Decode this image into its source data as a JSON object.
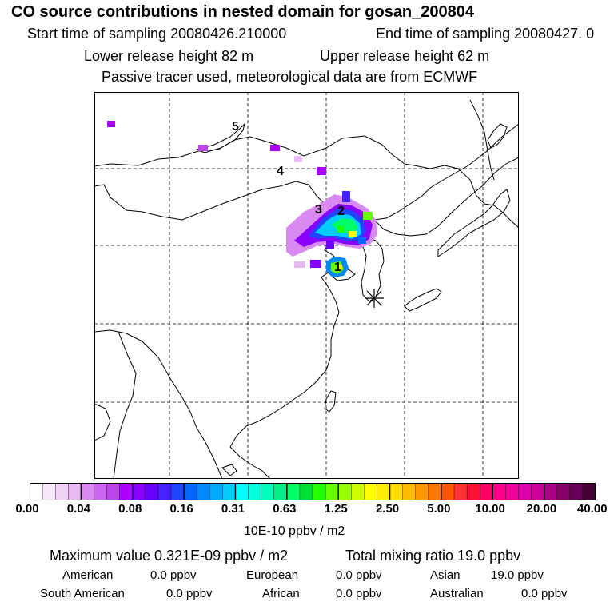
{
  "header": {
    "title": "CO  source contributions in nested domain for gosan_200804",
    "start_sampling": "Start time of sampling 20080426.210000",
    "end_sampling": "End time of sampling 20080427.     0",
    "lower_release": "Lower release height   82 m",
    "upper_release": "Upper release height   62 m",
    "tracer_note": "Passive tracer used, meteorological data are from ECMWF"
  },
  "map": {
    "labels": [
      "1",
      "2",
      "3",
      "4",
      "5"
    ],
    "receptor_icon": "asterisk-receptor-icon"
  },
  "colorbar": {
    "tick_labels": [
      "0.00",
      "0.04",
      "0.08",
      "0.16",
      "0.31",
      "0.63",
      "1.25",
      "2.50",
      "5.00",
      "10.00",
      "20.00",
      "40.00"
    ],
    "units": "10E-10 ppbv / m2",
    "colors": [
      "#ffffff",
      "#f7e9fb",
      "#f0d2f7",
      "#e8baf3",
      "#d98af0",
      "#cc66ee",
      "#bb44ee",
      "#aa00ff",
      "#8800ff",
      "#6600ff",
      "#4422ff",
      "#2244ff",
      "#0066ff",
      "#0088ff",
      "#00aaff",
      "#00ccff",
      "#00ffff",
      "#00ffdd",
      "#00ffbb",
      "#00ee88",
      "#00ff66",
      "#00dd33",
      "#22ff00",
      "#66ff00",
      "#99ff00",
      "#ccff00",
      "#ffff00",
      "#ffee00",
      "#ffdd00",
      "#ffbb00",
      "#ff9900",
      "#ff7700",
      "#ff5500",
      "#ff3333",
      "#ff1133",
      "#ff0066",
      "#ff0088",
      "#ee0099",
      "#dd00aa",
      "#cc0099",
      "#aa0088",
      "#880066",
      "#660055",
      "#440033"
    ]
  },
  "footer": {
    "max_value": "Maximum value  0.321E-09 ppbv / m2",
    "total_mixing": "Total mixing ratio       19.0 ppbv",
    "american_label": "American",
    "american_value": "0.0 ppbv",
    "european_label": "European",
    "european_value": "0.0 ppbv",
    "asian_label": "Asian",
    "asian_value": "19.0 ppbv",
    "south_american_label": "South American",
    "south_american_value": "0.0 ppbv",
    "african_label": "African",
    "african_value": "0.0 ppbv",
    "australian_label": "Australian",
    "australian_value": "0.0 ppbv"
  }
}
